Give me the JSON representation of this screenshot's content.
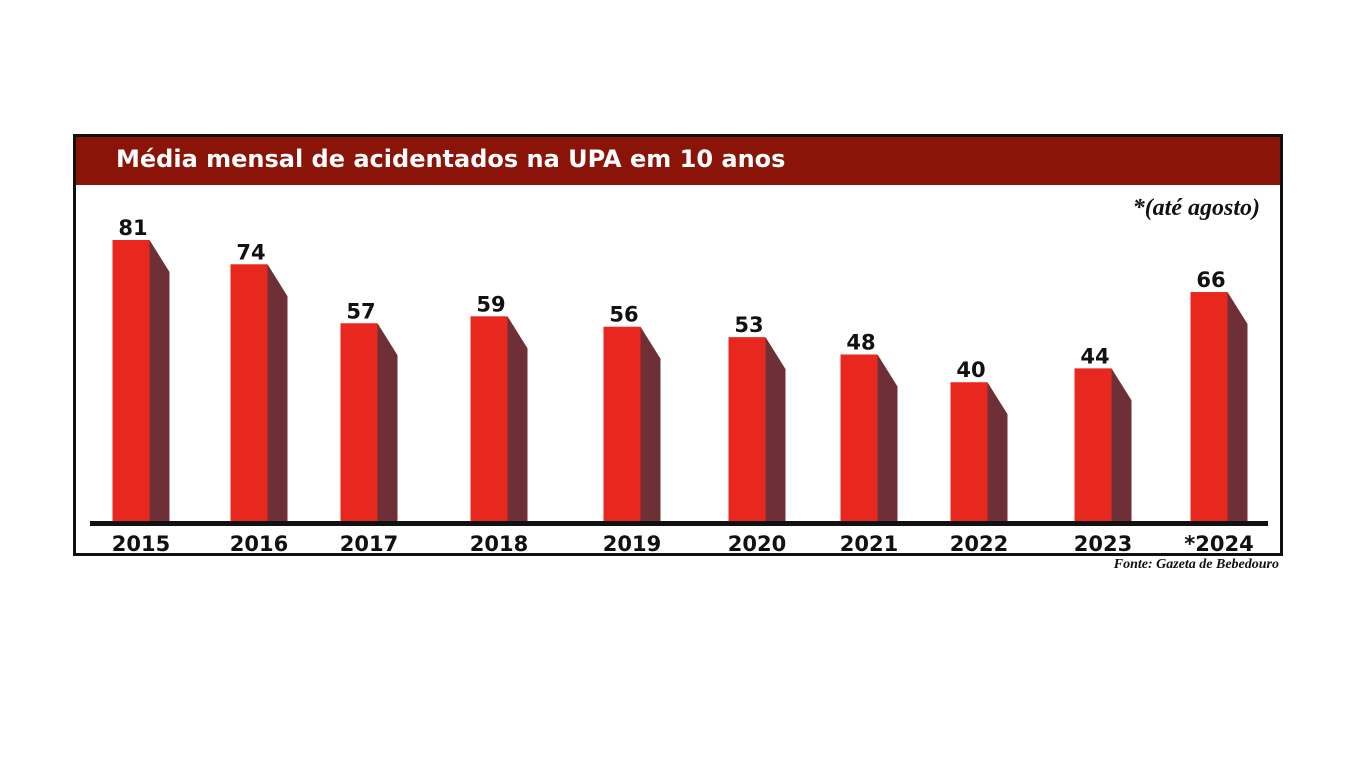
{
  "chart_data": {
    "type": "bar",
    "title": "Média mensal de acidentados na UPA em 10 anos",
    "note": "*(até agosto)",
    "source": "Fonte: Gazeta de Bebedouro",
    "categories": [
      "2015",
      "2016",
      "2017",
      "2018",
      "2019",
      "2020",
      "2021",
      "2022",
      "2023",
      "*2024"
    ],
    "values": [
      81,
      74,
      57,
      59,
      56,
      53,
      48,
      40,
      44,
      66
    ],
    "xlabel": "",
    "ylabel": "",
    "ylim": [
      0,
      81
    ],
    "grid": false,
    "colors": {
      "bar_front": "#e8281f",
      "bar_side": "#6e2f36",
      "title_bar": "#8b1409",
      "axis": "#111111"
    }
  }
}
